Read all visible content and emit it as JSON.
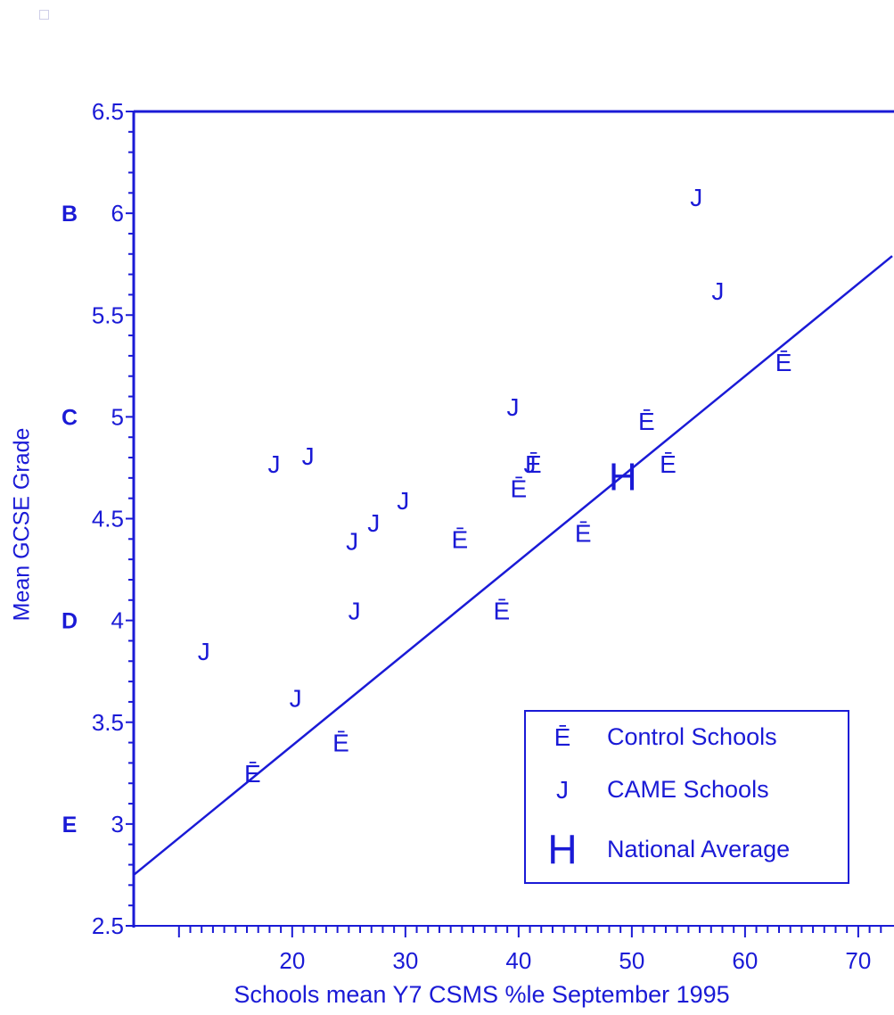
{
  "chart_data": {
    "type": "scatter",
    "xlabel": "Schools  mean Y7 CSMS %le September 1995",
    "ylabel": "Mean GCSE Grade",
    "xlim": [
      6,
      73
    ],
    "ylim": [
      2.5,
      6.5
    ],
    "x_ticks": [
      20,
      30,
      40,
      50,
      60,
      70
    ],
    "y_ticks": [
      2.5,
      3,
      3.5,
      4,
      4.5,
      5,
      5.5,
      6,
      6.5
    ],
    "y_tick_labels": [
      "2.5",
      "3",
      "3.5",
      "4",
      "4.5",
      "5",
      "5.5",
      "6",
      "6.5"
    ],
    "grade_labels": [
      {
        "grade": "B",
        "y": 6
      },
      {
        "grade": "C",
        "y": 5
      },
      {
        "grade": "D",
        "y": 4
      },
      {
        "grade": "E",
        "y": 3
      }
    ],
    "series": [
      {
        "name": "Control Schools",
        "marker": "Ē",
        "points": [
          [
            16.5,
            3.25
          ],
          [
            24.3,
            3.4
          ],
          [
            34.8,
            4.4
          ],
          [
            38.5,
            4.05
          ],
          [
            40.0,
            4.65
          ],
          [
            41.3,
            4.77
          ],
          [
            45.7,
            4.43
          ],
          [
            51.3,
            4.98
          ],
          [
            53.2,
            4.77
          ],
          [
            63.4,
            5.27
          ]
        ]
      },
      {
        "name": "CAME Schools",
        "marker": "J",
        "points": [
          [
            12.2,
            3.85
          ],
          [
            20.3,
            3.62
          ],
          [
            18.4,
            4.77
          ],
          [
            21.4,
            4.81
          ],
          [
            25.3,
            4.39
          ],
          [
            25.5,
            4.05
          ],
          [
            27.2,
            4.48
          ],
          [
            29.8,
            4.59
          ],
          [
            39.5,
            5.05
          ],
          [
            41.0,
            4.77
          ],
          [
            55.7,
            6.08
          ],
          [
            57.6,
            5.62
          ]
        ]
      },
      {
        "name": "National Average",
        "marker": "H",
        "points": [
          [
            49.2,
            4.71
          ]
        ]
      }
    ],
    "regression_line": {
      "x": [
        6,
        73
      ],
      "y": [
        2.75,
        5.79
      ]
    },
    "legend_position": "bottom-right",
    "grid": false
  },
  "colors": {
    "ink": "#1a1ad6"
  }
}
